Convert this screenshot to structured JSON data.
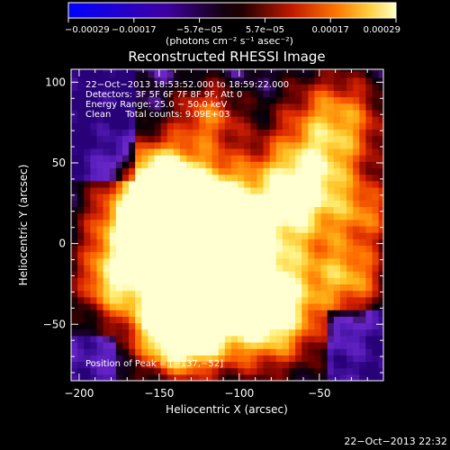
{
  "chart_data": {
    "type": "heatmap",
    "title": "Reconstructed RHESSI Image",
    "xlabel": "Heliocentric X (arcsec)",
    "ylabel": "Heliocentric Y (arcsec)",
    "xlim": [
      -205,
      -10
    ],
    "ylim": [
      -85,
      108
    ],
    "xticks": [
      -200,
      -150,
      -100,
      -50
    ],
    "xtick_labels": [
      "−200",
      "−150",
      "−100",
      "−50"
    ],
    "yticks": [
      100,
      50,
      0,
      -50
    ],
    "ytick_labels": [
      "100",
      "50",
      "0",
      "−50"
    ],
    "colorbar": {
      "range": [
        -0.00029,
        0.00029
      ],
      "tick_labels": [
        "−0.00029",
        "−0.00017",
        "−5.7e−05",
        "5.7e−05",
        "0.00017",
        "0.00029"
      ],
      "unit_label": "(photons cm⁻² s⁻¹ asec⁻²)"
    },
    "annotations": [
      "22−Oct−2013 18:53:52.000 to 18:59:22.000",
      "Detectors: 3F 5F 6F 7F 8F 9F, Att 0",
      "Energy Range: 25.0 − 50.0 keV",
      "Clean     Total counts: 9.09E+03"
    ],
    "peak_label": "Position of Peak = [−137,−52]",
    "peak": [
      -137,
      -52
    ],
    "timestamp": "22−Oct−2013 22:32",
    "colors": {
      "low": "#3a00c8",
      "mid": "#c81400",
      "high": "#ffffb0"
    }
  }
}
